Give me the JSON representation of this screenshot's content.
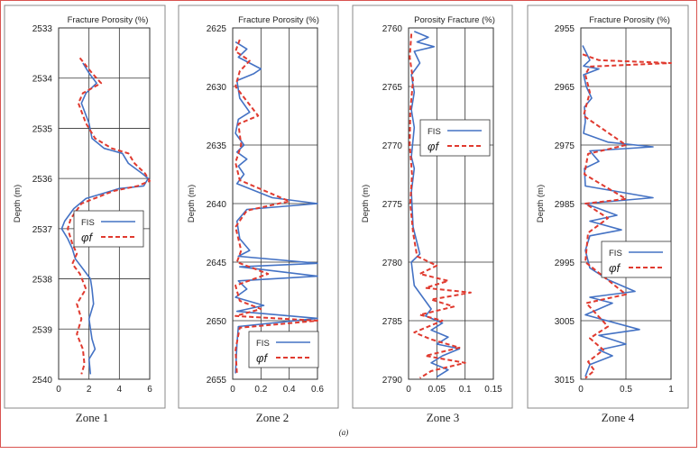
{
  "caption": "(a)",
  "colors": {
    "fis": "#4472c4",
    "phi": "#e03a2f",
    "grid": "#333333",
    "panel_border": "#888888"
  },
  "chart_data": [
    {
      "type": "line",
      "zone_label": "Zone 1",
      "title": "Fracture Porosity (%)",
      "ylabel": "Depth (m)",
      "xlim": [
        0,
        6
      ],
      "ylim": [
        2533,
        2540
      ],
      "xticks": [
        "0",
        "2",
        "4",
        "6"
      ],
      "xtick_values": [
        0,
        2,
        4,
        6
      ],
      "yticks": [
        "2533",
        "2534",
        "2535",
        "2536",
        "2537",
        "2538",
        "2539",
        "2540"
      ],
      "ytick_values": [
        2533,
        2534,
        2535,
        2536,
        2537,
        2538,
        2539,
        2540
      ],
      "legend_position": "middle-right",
      "series": [
        {
          "name": "FIS",
          "style": "solid",
          "points": [
            [
              1.6,
              2533.7
            ],
            [
              2.0,
              2533.9
            ],
            [
              2.5,
              2534.1
            ],
            [
              1.8,
              2534.3
            ],
            [
              1.5,
              2534.5
            ],
            [
              2.0,
              2534.9
            ],
            [
              2.2,
              2535.2
            ],
            [
              3.0,
              2535.4
            ],
            [
              4.2,
              2535.5
            ],
            [
              4.6,
              2535.7
            ],
            [
              5.5,
              2535.9
            ],
            [
              5.9,
              2536.0
            ],
            [
              5.6,
              2536.15
            ],
            [
              4.0,
              2536.2
            ],
            [
              1.8,
              2536.4
            ],
            [
              1.0,
              2536.6
            ],
            [
              0.4,
              2536.85
            ],
            [
              0.2,
              2537.0
            ],
            [
              0.6,
              2537.2
            ],
            [
              0.9,
              2537.4
            ],
            [
              1.1,
              2537.6
            ],
            [
              1.6,
              2537.8
            ],
            [
              2.1,
              2538.0
            ],
            [
              2.2,
              2538.2
            ],
            [
              2.3,
              2538.5
            ],
            [
              2.0,
              2538.8
            ],
            [
              2.2,
              2539.2
            ],
            [
              2.4,
              2539.4
            ],
            [
              2.0,
              2539.6
            ],
            [
              2.1,
              2539.9
            ]
          ]
        },
        {
          "name": "φf",
          "style": "dashed",
          "points": [
            [
              1.4,
              2533.6
            ],
            [
              2.2,
              2533.9
            ],
            [
              2.8,
              2534.1
            ],
            [
              1.6,
              2534.3
            ],
            [
              1.3,
              2534.5
            ],
            [
              1.8,
              2534.9
            ],
            [
              2.4,
              2535.2
            ],
            [
              3.5,
              2535.4
            ],
            [
              4.6,
              2535.5
            ],
            [
              5.0,
              2535.7
            ],
            [
              5.7,
              2535.9
            ],
            [
              6.0,
              2536.05
            ],
            [
              5.2,
              2536.15
            ],
            [
              3.6,
              2536.25
            ],
            [
              1.5,
              2536.5
            ],
            [
              0.8,
              2536.8
            ],
            [
              0.6,
              2537.0
            ],
            [
              0.9,
              2537.3
            ],
            [
              1.2,
              2537.5
            ],
            [
              0.9,
              2537.7
            ],
            [
              1.4,
              2537.9
            ],
            [
              1.8,
              2538.2
            ],
            [
              1.2,
              2538.5
            ],
            [
              1.5,
              2538.8
            ],
            [
              1.2,
              2539.1
            ],
            [
              1.6,
              2539.4
            ],
            [
              1.7,
              2539.7
            ],
            [
              1.5,
              2539.9
            ]
          ]
        }
      ]
    },
    {
      "type": "line",
      "zone_label": "Zone 2",
      "title": "Fracture Porosity (%)",
      "ylabel": "Depth (m)",
      "xlim": [
        0,
        0.6
      ],
      "ylim": [
        2625,
        2655
      ],
      "xticks": [
        "0",
        "0.2",
        "0.4",
        "0.6"
      ],
      "xtick_values": [
        0,
        0.2,
        0.4,
        0.6
      ],
      "yticks": [
        "2625",
        "2630",
        "2635",
        "2640",
        "2645",
        "2650",
        "2655"
      ],
      "ytick_values": [
        2625,
        2630,
        2635,
        2640,
        2645,
        2650,
        2655
      ],
      "legend_position": "bottom-right",
      "series": [
        {
          "name": "FIS",
          "style": "solid",
          "points": [
            [
              0.02,
              2626.2
            ],
            [
              0.1,
              2626.8
            ],
            [
              0.04,
              2627.5
            ],
            [
              0.2,
              2628.5
            ],
            [
              0.15,
              2628.9
            ],
            [
              0.03,
              2629.5
            ],
            [
              0.05,
              2631.0
            ],
            [
              0.12,
              2632.2
            ],
            [
              0.04,
              2632.8
            ],
            [
              0.02,
              2634.0
            ],
            [
              0.08,
              2635.0
            ],
            [
              0.03,
              2635.6
            ],
            [
              0.1,
              2636.2
            ],
            [
              0.04,
              2636.8
            ],
            [
              0.08,
              2637.5
            ],
            [
              0.03,
              2638.3
            ],
            [
              0.28,
              2639.5
            ],
            [
              0.6,
              2640.0
            ],
            [
              0.1,
              2640.5
            ],
            [
              0.03,
              2641.5
            ],
            [
              0.05,
              2643.0
            ],
            [
              0.12,
              2644.0
            ],
            [
              0.04,
              2644.5
            ],
            [
              0.6,
              2645.1
            ],
            [
              0.05,
              2645.4
            ],
            [
              0.6,
              2646.2
            ],
            [
              0.04,
              2646.6
            ],
            [
              0.1,
              2647.3
            ],
            [
              0.02,
              2648.0
            ],
            [
              0.22,
              2648.7
            ],
            [
              0.03,
              2649.2
            ],
            [
              0.6,
              2649.8
            ],
            [
              0.04,
              2650.5
            ],
            [
              0.03,
              2652.0
            ],
            [
              0.02,
              2654.5
            ]
          ]
        },
        {
          "name": "φf",
          "style": "dashed",
          "points": [
            [
              0.05,
              2626.0
            ],
            [
              0.02,
              2627.0
            ],
            [
              0.12,
              2627.8
            ],
            [
              0.05,
              2628.7
            ],
            [
              0.02,
              2630.0
            ],
            [
              0.18,
              2632.5
            ],
            [
              0.04,
              2633.2
            ],
            [
              0.06,
              2635.0
            ],
            [
              0.02,
              2636.5
            ],
            [
              0.05,
              2638.0
            ],
            [
              0.4,
              2639.8
            ],
            [
              0.1,
              2640.6
            ],
            [
              0.02,
              2642.0
            ],
            [
              0.06,
              2644.0
            ],
            [
              0.03,
              2645.0
            ],
            [
              0.25,
              2646.0
            ],
            [
              0.02,
              2647.0
            ],
            [
              0.05,
              2648.3
            ],
            [
              0.2,
              2649.0
            ],
            [
              0.02,
              2649.6
            ],
            [
              0.6,
              2650.0
            ],
            [
              0.05,
              2650.6
            ],
            [
              0.02,
              2652.5
            ],
            [
              0.03,
              2654.5
            ]
          ]
        }
      ]
    },
    {
      "type": "line",
      "zone_label": "Zone 3",
      "title": "Porosity Fracture (%)",
      "ylabel": "Depth (m)",
      "xlim": [
        0,
        0.15
      ],
      "ylim": [
        2760,
        2790
      ],
      "xticks": [
        "0",
        "0.05",
        "0.1",
        "0.15"
      ],
      "xtick_values": [
        0,
        0.05,
        0.1,
        0.15
      ],
      "yticks": [
        "2760",
        "2765",
        "2770",
        "2775",
        "2780",
        "2785",
        "2790"
      ],
      "ytick_values": [
        2760,
        2765,
        2770,
        2775,
        2780,
        2785,
        2790
      ],
      "legend_position": "top-right",
      "series": [
        {
          "name": "FIS",
          "style": "solid",
          "points": [
            [
              0.01,
              2760.3
            ],
            [
              0.035,
              2760.8
            ],
            [
              0.015,
              2761.2
            ],
            [
              0.045,
              2761.6
            ],
            [
              0.01,
              2762.0
            ],
            [
              0.02,
              2763.0
            ],
            [
              0.005,
              2764.0
            ],
            [
              0.01,
              2765.5
            ],
            [
              0.005,
              2767.0
            ],
            [
              0.01,
              2768.5
            ],
            [
              0.005,
              2771.0
            ],
            [
              0.01,
              2772.0
            ],
            [
              0.005,
              2774.0
            ],
            [
              0.008,
              2777.0
            ],
            [
              0.02,
              2779.3
            ],
            [
              0.005,
              2780.0
            ],
            [
              0.01,
              2782.0
            ],
            [
              0.04,
              2784.0
            ],
            [
              0.03,
              2784.6
            ],
            [
              0.06,
              2785.2
            ],
            [
              0.04,
              2785.8
            ],
            [
              0.07,
              2786.4
            ],
            [
              0.05,
              2787.0
            ],
            [
              0.09,
              2787.4
            ],
            [
              0.06,
              2788.0
            ],
            [
              0.04,
              2788.6
            ],
            [
              0.07,
              2789.2
            ],
            [
              0.05,
              2789.8
            ]
          ]
        },
        {
          "name": "φf",
          "style": "dashed",
          "points": [
            [
              0.005,
              2760.5
            ],
            [
              0.002,
              2762.5
            ],
            [
              0.008,
              2764.5
            ],
            [
              0.003,
              2767.0
            ],
            [
              0.002,
              2770.0
            ],
            [
              0.006,
              2772.5
            ],
            [
              0.003,
              2775.0
            ],
            [
              0.008,
              2777.5
            ],
            [
              0.015,
              2779.5
            ],
            [
              0.05,
              2780.3
            ],
            [
              0.02,
              2781.0
            ],
            [
              0.07,
              2781.6
            ],
            [
              0.03,
              2782.2
            ],
            [
              0.11,
              2782.6
            ],
            [
              0.04,
              2783.2
            ],
            [
              0.08,
              2783.8
            ],
            [
              0.02,
              2784.5
            ],
            [
              0.06,
              2785.0
            ],
            [
              0.01,
              2786.0
            ],
            [
              0.04,
              2786.6
            ],
            [
              0.09,
              2787.3
            ],
            [
              0.03,
              2788.0
            ],
            [
              0.1,
              2788.6
            ],
            [
              0.04,
              2789.3
            ],
            [
              0.02,
              2789.9
            ]
          ]
        }
      ]
    },
    {
      "type": "line",
      "zone_label": "Zone 4",
      "title": "Fracture Porosity (%)",
      "ylabel": "Depth (m)",
      "xlim": [
        0,
        1
      ],
      "ylim": [
        2955,
        3015
      ],
      "xticks": [
        "0",
        "0.5",
        "1"
      ],
      "xtick_values": [
        0,
        0.5,
        1
      ],
      "yticks": [
        "2955",
        "2965",
        "2975",
        "2985",
        "2995",
        "3005",
        "3015"
      ],
      "ytick_values": [
        2955,
        2965,
        2975,
        2985,
        2995,
        3005,
        3015
      ],
      "legend_position": "middle-right",
      "series": [
        {
          "name": "FIS",
          "style": "solid",
          "points": [
            [
              0.02,
              2958.0
            ],
            [
              0.1,
              2960.5
            ],
            [
              0.03,
              2961.5
            ],
            [
              0.2,
              2962.0
            ],
            [
              0.03,
              2963.0
            ],
            [
              0.06,
              2965.0
            ],
            [
              0.12,
              2967.0
            ],
            [
              0.04,
              2968.5
            ],
            [
              0.05,
              2971.0
            ],
            [
              0.03,
              2973.0
            ],
            [
              0.3,
              2974.5
            ],
            [
              0.8,
              2975.3
            ],
            [
              0.1,
              2976.0
            ],
            [
              0.2,
              2977.8
            ],
            [
              0.04,
              2979.0
            ],
            [
              0.05,
              2982.0
            ],
            [
              0.8,
              2984.0
            ],
            [
              0.05,
              2985.0
            ],
            [
              0.4,
              2987.0
            ],
            [
              0.1,
              2988.0
            ],
            [
              0.45,
              2989.5
            ],
            [
              0.1,
              2990.5
            ],
            [
              0.05,
              2993.0
            ],
            [
              0.1,
              2996.0
            ],
            [
              0.3,
              2998.0
            ],
            [
              0.6,
              3000.0
            ],
            [
              0.1,
              3001.0
            ],
            [
              0.35,
              3002.0
            ],
            [
              0.05,
              3004.0
            ],
            [
              0.65,
              3006.5
            ],
            [
              0.2,
              3007.5
            ],
            [
              0.5,
              3009.0
            ],
            [
              0.2,
              3010.0
            ],
            [
              0.35,
              3011.0
            ],
            [
              0.1,
              3012.5
            ],
            [
              0.05,
              3014.5
            ]
          ]
        },
        {
          "name": "φf",
          "style": "dashed",
          "points": [
            [
              0.02,
              2959.5
            ],
            [
              0.2,
              2960.5
            ],
            [
              1.0,
              2961.0
            ],
            [
              0.1,
              2961.6
            ],
            [
              0.05,
              2963.0
            ],
            [
              0.1,
              2966.0
            ],
            [
              0.03,
              2970.0
            ],
            [
              0.5,
              2975.0
            ],
            [
              0.08,
              2976.5
            ],
            [
              0.04,
              2980.0
            ],
            [
              0.5,
              2984.2
            ],
            [
              0.05,
              2985.0
            ],
            [
              0.3,
              2987.5
            ],
            [
              0.08,
              2990.0
            ],
            [
              0.05,
              2995.0
            ],
            [
              0.5,
              3000.5
            ],
            [
              0.06,
              3002.0
            ],
            [
              0.3,
              3006.0
            ],
            [
              0.1,
              3008.0
            ],
            [
              0.25,
              3010.0
            ],
            [
              0.08,
              3012.0
            ],
            [
              0.15,
              3013.5
            ],
            [
              0.05,
              3014.8
            ]
          ]
        }
      ]
    }
  ]
}
